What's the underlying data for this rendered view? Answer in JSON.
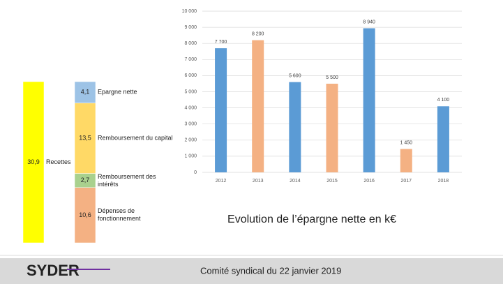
{
  "chart_data": [
    {
      "type": "stacked_column",
      "columns": [
        {
          "name": "Recettes",
          "segments": [
            {
              "value": 30.9,
              "label": "30,9",
              "color": "#ffff00"
            }
          ]
        },
        {
          "segments": [
            {
              "name": "Dépenses de fonctionnement",
              "value": 10.6,
              "label": "10,6",
              "color": "#f4b183"
            },
            {
              "name": "Remboursement des intérêts",
              "value": 2.7,
              "label": "2,7",
              "color": "#a9d18e"
            },
            {
              "name": "Remboursement du capital",
              "value": 13.5,
              "label": "13,5",
              "color": "#ffd966"
            },
            {
              "name": "Epargne nette",
              "value": 4.1,
              "label": "4,1",
              "color": "#9dc3e6"
            }
          ]
        }
      ]
    },
    {
      "type": "bar",
      "title": "Evolution de l’épargne nette en k€",
      "categories": [
        "2012",
        "2013",
        "2014",
        "2015",
        "2016",
        "2017",
        "2018"
      ],
      "values": [
        7700,
        8200,
        5600,
        5500,
        8940,
        1450,
        4100
      ],
      "value_labels": [
        "7 700",
        "8 200",
        "5 600",
        "5 500",
        "8 940",
        "1 450",
        "4 100"
      ],
      "colors": [
        "#5b9bd5",
        "#f4b183",
        "#5b9bd5",
        "#f4b183",
        "#5b9bd5",
        "#f4b183",
        "#5b9bd5"
      ],
      "ylim": [
        0,
        10000
      ],
      "yticks": [
        0,
        {
          "value": 1000,
          "label": "1 000"
        },
        {
          "value": 2000,
          "label": "2 000"
        },
        {
          "value": 3000,
          "label": "3 000"
        },
        {
          "value": 4000,
          "label": "4 000"
        },
        {
          "value": 5000,
          "label": "5 000"
        },
        {
          "value": 6000,
          "label": "6 000"
        },
        {
          "value": 7000,
          "label": "7 000"
        },
        {
          "value": 8000,
          "label": "8 000"
        },
        {
          "value": 9000,
          "label": "9 000"
        },
        {
          "value": 10000,
          "label": "10 000"
        }
      ],
      "grid": true
    }
  ],
  "footer": {
    "logo": "SYDER",
    "text": "Comité syndical du 22 janvier 2019"
  }
}
